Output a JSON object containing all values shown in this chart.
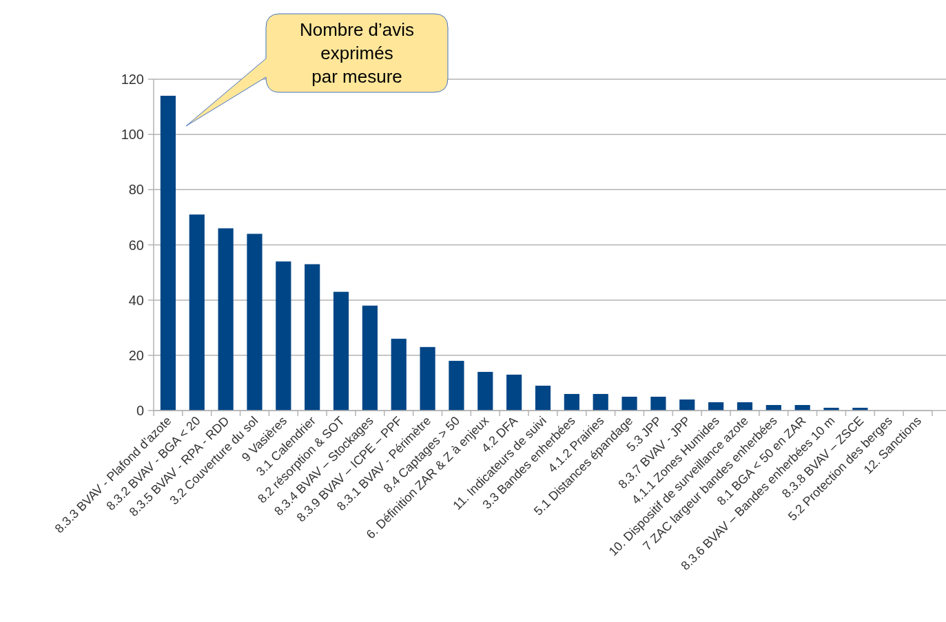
{
  "chart_data": {
    "type": "bar",
    "categories": [
      "8.3.3 BVAV - Plafond d’azote",
      "8.3.2 BVAV - BGA < 20",
      "8.3.5 BVAV - RPA - RDD",
      "3.2 Couverture du sol",
      "9 Vasières",
      "3.1 Calendrier",
      "8.2 résorption & SOT",
      "8.3.4 BVAV – Stockages",
      "8.3.9 BVAV – ICPE – PPF",
      "8.3.1 BVAV - Périmètre",
      "8.4 Captages > 50",
      "6. Définition ZAR & Z à enjeux",
      "4.2 DFA",
      "11. Indicateurs de suivi",
      "3.3 Bandes enherbées",
      "4.1.2 Prairies",
      "5.1 Distances épandage",
      "5.3 JPP",
      "8.3.7 BVAV - JPP",
      "4.1.1 Zones Humides",
      "10. Dispositif de surveillance azote",
      "7 ZAC largeur bandes enherbées",
      "8.1 BGA < 50 en ZAR",
      "8.3.6 BVAV – Bandes enherbées 10 m",
      "8.3.8 BVAV – ZSCE",
      "5.2 Protection des berges",
      "12. Sanctions"
    ],
    "values": [
      114,
      71,
      66,
      64,
      54,
      53,
      43,
      38,
      26,
      23,
      18,
      14,
      13,
      9,
      6,
      6,
      5,
      5,
      4,
      3,
      3,
      2,
      2,
      1,
      1,
      0,
      0
    ],
    "color": "#004586",
    "ylim": [
      0,
      120
    ],
    "yticks": [
      0,
      20,
      40,
      60,
      80,
      100,
      120
    ],
    "grid": "y",
    "annotations": [
      "Nombre d’avis\nexprimés\npar mesure"
    ]
  }
}
